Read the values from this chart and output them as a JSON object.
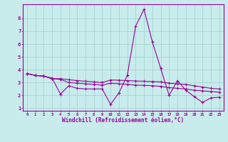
{
  "xlabel": "Windchill (Refroidissement éolien,°C)",
  "background_color": "#c8ecec",
  "grid_color": "#a0cccc",
  "line_color": "#990099",
  "x_ticks": [
    0,
    1,
    2,
    3,
    4,
    5,
    6,
    7,
    8,
    9,
    10,
    11,
    12,
    13,
    14,
    15,
    16,
    17,
    18,
    19,
    20,
    21,
    22,
    23
  ],
  "y_ticks": [
    1,
    2,
    3,
    4,
    5,
    6,
    7,
    8
  ],
  "xlim": [
    0,
    23
  ],
  "ylim": [
    1,
    9
  ],
  "series": [
    [
      3.7,
      3.55,
      3.5,
      3.35,
      2.1,
      2.75,
      2.55,
      2.5,
      2.5,
      2.5,
      1.3,
      2.2,
      3.55,
      7.4,
      8.7,
      6.15,
      4.1,
      2.0,
      3.15,
      2.4,
      1.9,
      1.45,
      1.8,
      1.85
    ],
    [
      3.7,
      3.55,
      3.5,
      3.3,
      3.3,
      3.22,
      3.15,
      3.1,
      3.05,
      3.0,
      3.2,
      3.18,
      3.15,
      3.12,
      3.1,
      3.08,
      3.05,
      2.95,
      2.9,
      2.85,
      2.75,
      2.65,
      2.55,
      2.5
    ],
    [
      3.7,
      3.55,
      3.5,
      3.3,
      3.25,
      3.0,
      2.95,
      2.9,
      2.85,
      2.8,
      2.95,
      2.9,
      2.85,
      2.8,
      2.78,
      2.75,
      2.7,
      2.6,
      2.55,
      2.5,
      2.4,
      2.35,
      2.3,
      2.25
    ]
  ]
}
